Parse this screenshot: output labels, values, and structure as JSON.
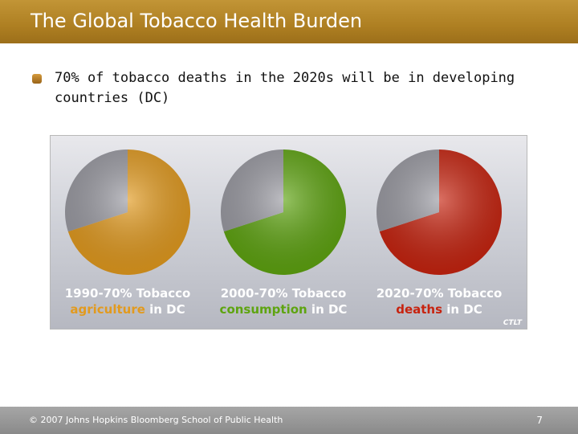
{
  "slide": {
    "title": "The Global Tobacco Health Burden",
    "bullet": "70% of tobacco deaths in the 2020s will be in developing countries (DC)",
    "footer": "© 2007 Johns Hopkins Bloomberg School of Public Health",
    "page_number": "7",
    "watermark": "CTLT"
  },
  "colors": {
    "title_bar": "#b08224",
    "other_slice": "#9a9aa2",
    "agriculture": "#e29a1e",
    "consumption": "#5ea410",
    "deaths": "#c7230f"
  },
  "chart_data": [
    {
      "type": "pie",
      "caption_line1": "1990-70% Tobacco",
      "caption_highlight": "agriculture",
      "caption_rest": " in DC",
      "slices": [
        {
          "label": "DC",
          "value": 70,
          "color": "#e29a1e"
        },
        {
          "label": "",
          "value": 30,
          "color": "#9a9aa2"
        }
      ]
    },
    {
      "type": "pie",
      "caption_line1": "2000-70% Tobacco",
      "caption_highlight": "consumption",
      "caption_rest": " in DC",
      "slices": [
        {
          "label": "DC",
          "value": 70,
          "color": "#5ea410"
        },
        {
          "label": "",
          "value": 30,
          "color": "#9a9aa2"
        }
      ]
    },
    {
      "type": "pie",
      "caption_line1": "2020-70% Tobacco",
      "caption_highlight": "deaths",
      "caption_rest": " in DC",
      "slices": [
        {
          "label": "DC",
          "value": 70,
          "color": "#c7230f"
        },
        {
          "label": "",
          "value": 30,
          "color": "#9a9aa2"
        }
      ]
    }
  ]
}
